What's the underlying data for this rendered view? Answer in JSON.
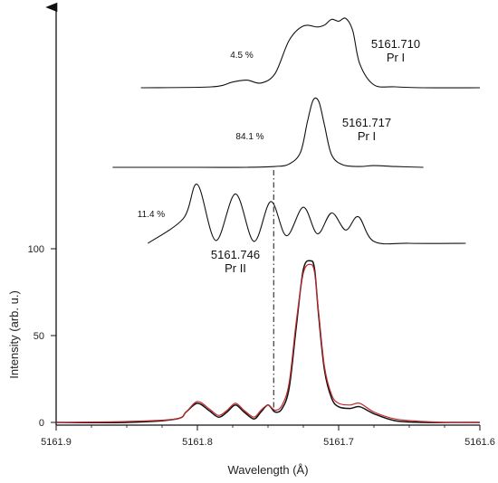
{
  "chart_data": {
    "type": "line",
    "title": "",
    "xlabel": "Wavelength (Å)",
    "ylabel": "Intensity (arb. u.)",
    "x_reversed": true,
    "xlim": [
      5161.6,
      5161.9
    ],
    "ylim": [
      0,
      100
    ],
    "x_ticks": [
      "5161.9",
      "5161.8",
      "5161.7",
      "5161.6"
    ],
    "x_tick_values": [
      5161.9,
      5161.8,
      5161.7,
      5161.6
    ],
    "y_ticks": [
      "0",
      "50",
      "100"
    ],
    "y_tick_values": [
      0,
      50,
      100
    ],
    "grid": false,
    "colors": {
      "measured": "#111111",
      "fit": "#c0282b",
      "components": "#111111",
      "marker": "#111111"
    },
    "series": [
      {
        "role": "measured",
        "x": [
          5161.9,
          5161.85,
          5161.815,
          5161.808,
          5161.8,
          5161.792,
          5161.785,
          5161.779,
          5161.773,
          5161.767,
          5161.76,
          5161.755,
          5161.75,
          5161.745,
          5161.74,
          5161.735,
          5161.73,
          5161.725,
          5161.72,
          5161.717,
          5161.714,
          5161.71,
          5161.705,
          5161.7,
          5161.692,
          5161.685,
          5161.675,
          5161.66,
          5161.64,
          5161.62,
          5161.6
        ],
        "values": [
          0,
          0,
          2,
          6,
          11,
          7,
          3,
          6,
          10,
          6,
          2,
          6,
          10,
          6,
          8,
          20,
          55,
          88,
          93,
          88,
          60,
          30,
          14,
          9,
          8,
          9,
          5,
          1,
          0,
          0,
          0
        ]
      },
      {
        "role": "fit",
        "x": [
          5161.9,
          5161.85,
          5161.815,
          5161.808,
          5161.8,
          5161.792,
          5161.785,
          5161.779,
          5161.773,
          5161.767,
          5161.76,
          5161.755,
          5161.75,
          5161.745,
          5161.74,
          5161.735,
          5161.73,
          5161.725,
          5161.72,
          5161.717,
          5161.714,
          5161.71,
          5161.705,
          5161.7,
          5161.692,
          5161.685,
          5161.675,
          5161.66,
          5161.64,
          5161.62,
          5161.6
        ],
        "values": [
          0,
          0.5,
          2,
          6,
          12,
          8,
          4,
          7,
          11,
          7,
          3,
          7,
          10,
          7,
          10,
          23,
          58,
          86,
          91,
          86,
          62,
          32,
          16,
          11,
          10,
          11,
          6,
          2,
          0.5,
          0,
          0
        ]
      }
    ],
    "components": [
      {
        "label": "5161.710\nPr I",
        "fraction_label": "4.5 %",
        "x": [
          5161.84,
          5161.79,
          5161.775,
          5161.765,
          5161.755,
          5161.745,
          5161.735,
          5161.725,
          5161.715,
          5161.71,
          5161.705,
          5161.7,
          5161.695,
          5161.69,
          5161.685,
          5161.675,
          5161.66,
          5161.64,
          5161.6
        ],
        "values": [
          0,
          1,
          6,
          8,
          5,
          15,
          50,
          65,
          64,
          66,
          72,
          70,
          73,
          60,
          25,
          3,
          1,
          0,
          0
        ]
      },
      {
        "label": "5161.717\nPr I",
        "fraction_label": "84.1 %",
        "x": [
          5161.86,
          5161.8,
          5161.765,
          5161.745,
          5161.735,
          5161.727,
          5161.722,
          5161.718,
          5161.714,
          5161.71,
          5161.705,
          5161.697,
          5161.685,
          5161.675,
          5161.66,
          5161.64
        ],
        "values": [
          0,
          0,
          0,
          1,
          4,
          18,
          55,
          80,
          78,
          50,
          15,
          3,
          1,
          2,
          1,
          0
        ]
      },
      {
        "label": "5161.746\nPr II",
        "fraction_label": "11.4 %",
        "x": [
          5161.835,
          5161.81,
          5161.8,
          5161.787,
          5161.773,
          5161.76,
          5161.748,
          5161.737,
          5161.725,
          5161.715,
          5161.705,
          5161.695,
          5161.686,
          5161.675,
          5161.65,
          5161.61
        ],
        "values": [
          0,
          26,
          62,
          3,
          52,
          2,
          44,
          8,
          38,
          10,
          32,
          14,
          28,
          2,
          0,
          0
        ]
      }
    ],
    "marker_x": 5161.746
  }
}
